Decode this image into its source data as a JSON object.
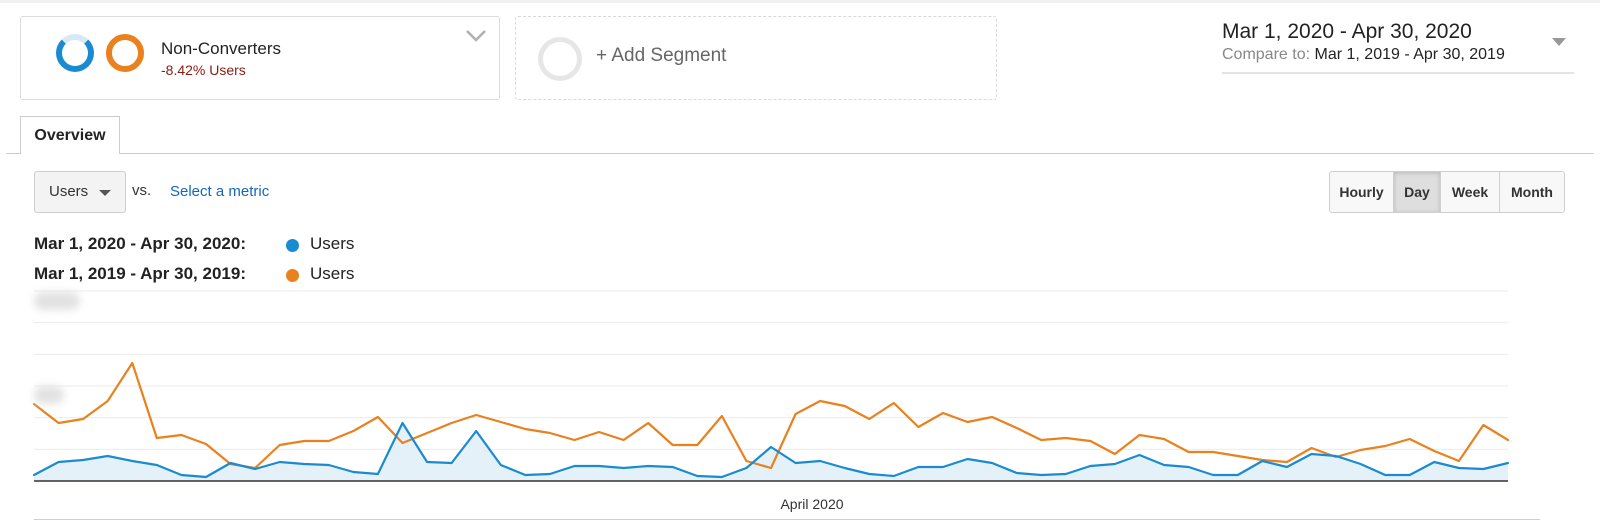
{
  "segment": {
    "name": "Non-Converters",
    "subtitle": "-8.42% Users"
  },
  "add_segment": {
    "label": "+ Add Segment"
  },
  "date_range": {
    "main": "Mar 1, 2020 - Apr 30, 2020",
    "compare_label": "Compare to:",
    "compare_value": "Mar 1, 2019 - Apr 30, 2019"
  },
  "tabs": [
    {
      "label": "Overview",
      "active": true
    }
  ],
  "metric": {
    "selected": "Users",
    "vs_label": "vs.",
    "select_link": "Select a metric"
  },
  "granularity": {
    "options": [
      "Hourly",
      "Day",
      "Week",
      "Month"
    ],
    "selected": "Day"
  },
  "legend": [
    {
      "range": "Mar 1, 2020 - Apr 30, 2020:",
      "name": "Users",
      "color": "#1a8bd1"
    },
    {
      "range": "Mar 1, 2019 - Apr 30, 2019:",
      "name": "Users",
      "color": "#e8811e"
    }
  ],
  "chart_data": {
    "type": "line",
    "x_axis_label": "April 2020",
    "ylim": [
      0,
      190
    ],
    "grid": true,
    "y_tick_labels_visible": false,
    "series": [
      {
        "name": "Users",
        "period": "Mar 1, 2020 - Apr 30, 2020",
        "color": "#1a8bd1",
        "filled": true,
        "values": [
          6,
          19,
          21,
          25,
          20,
          16,
          6,
          4,
          18,
          12,
          19,
          17,
          16,
          9,
          7,
          58,
          19,
          18,
          50,
          16,
          6,
          7,
          15,
          15,
          13,
          15,
          14,
          5,
          4,
          13,
          34,
          18,
          20,
          13,
          7,
          5,
          14,
          14,
          22,
          18,
          8,
          6,
          7,
          15,
          17,
          26,
          16,
          14,
          6,
          6,
          20,
          14,
          27,
          25,
          17,
          6,
          6,
          19,
          13,
          12,
          18
        ]
      },
      {
        "name": "Users",
        "period": "Mar 1, 2019 - Apr 30, 2019",
        "color": "#e8811e",
        "filled": false,
        "values": [
          77,
          58,
          62,
          80,
          118,
          43,
          46,
          37,
          17,
          13,
          36,
          40,
          40,
          50,
          64,
          38,
          48,
          58,
          66,
          59,
          52,
          48,
          41,
          49,
          41,
          58,
          36,
          36,
          65,
          20,
          13,
          67,
          80,
          75,
          62,
          78,
          54,
          68,
          59,
          64,
          53,
          41,
          43,
          40,
          27,
          46,
          42,
          29,
          29,
          25,
          21,
          19,
          33,
          24,
          31,
          35,
          42,
          30,
          20,
          56,
          41
        ]
      }
    ]
  }
}
